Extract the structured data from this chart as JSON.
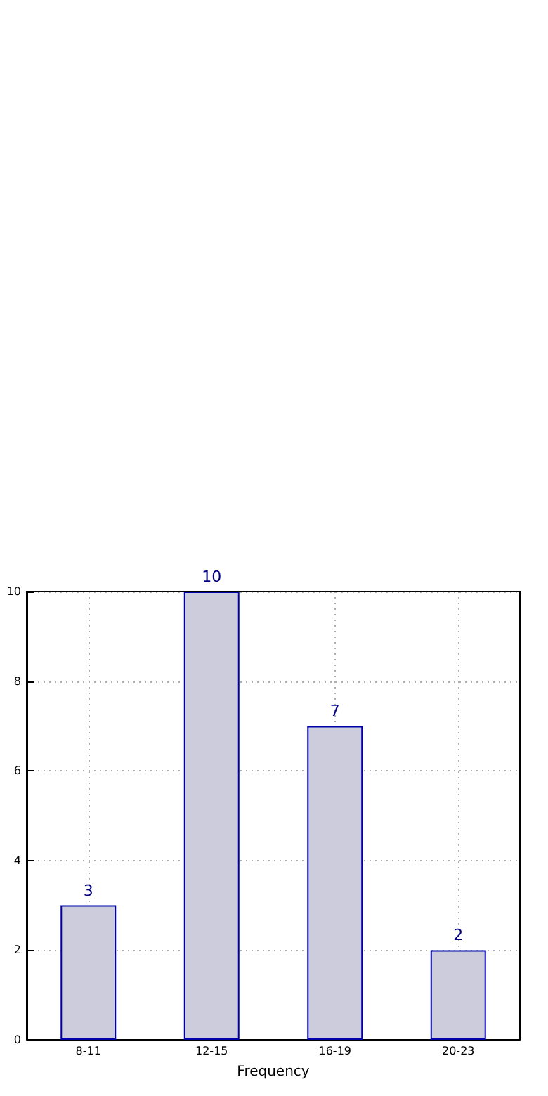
{
  "chart_data": {
    "type": "bar",
    "xlabel": "Frequency",
    "categories": [
      "8-11",
      "12-15",
      "16-19",
      "20-23"
    ],
    "series": [
      {
        "color": "#ccccdd",
        "values": [
          3,
          10,
          7,
          2
        ]
      }
    ],
    "ylim": [
      0,
      10
    ],
    "yticks": [
      0,
      2,
      4,
      6,
      8,
      10
    ],
    "grid": true,
    "data_labels": true
  }
}
